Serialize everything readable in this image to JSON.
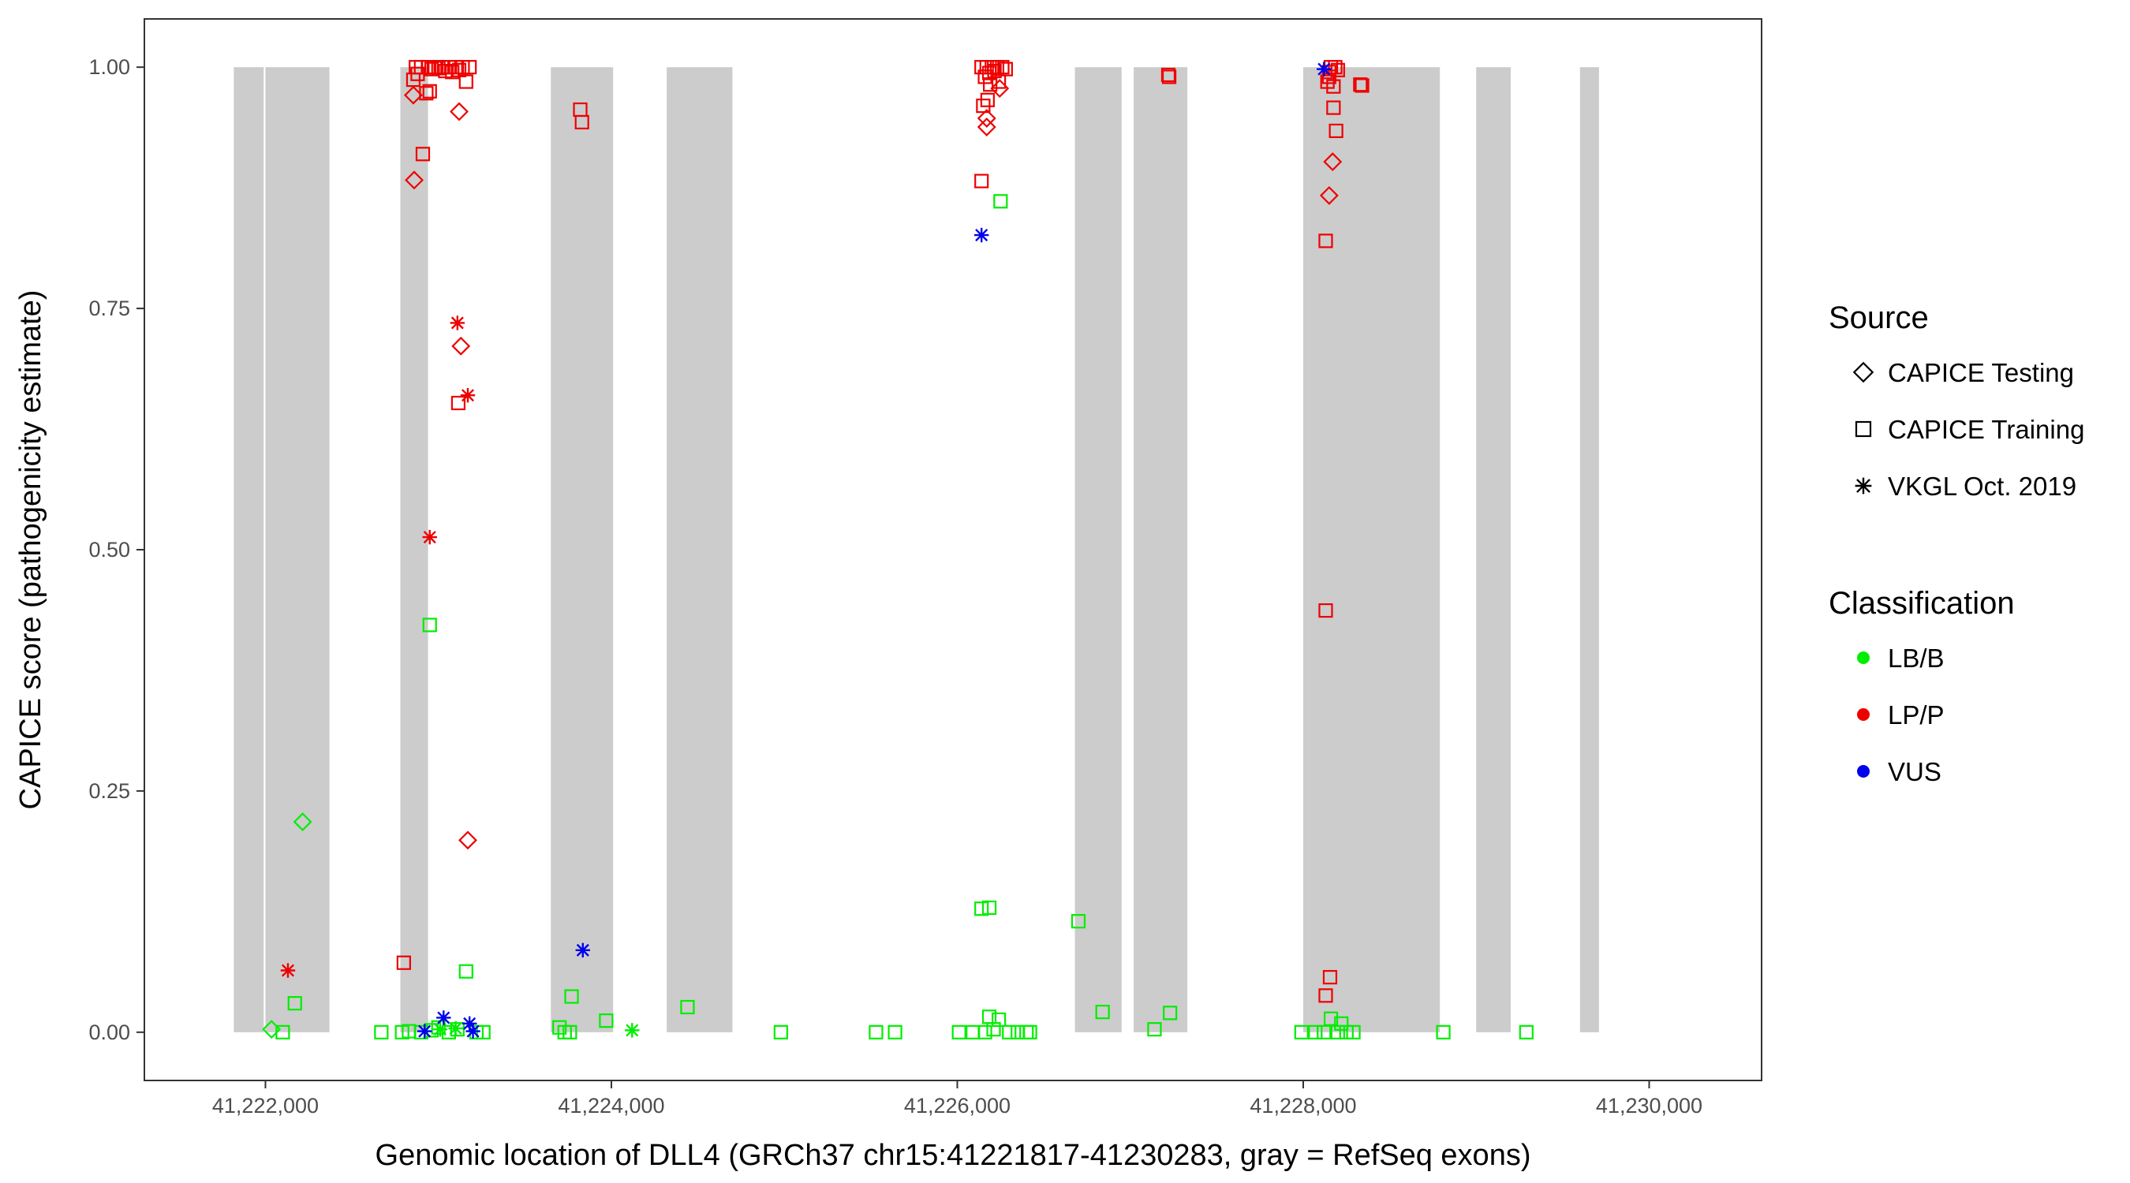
{
  "chart_data": {
    "type": "scatter",
    "xlabel": "Genomic location of DLL4 (GRCh37 chr15:41221817-41230283, gray = RefSeq exons)",
    "ylabel": "CAPICE score (pathogenicity estimate)",
    "xlim": [
      41221300,
      41230650
    ],
    "ylim": [
      -0.05,
      1.05
    ],
    "x_ticks": [
      {
        "value": 41222000,
        "label": "41,222,000"
      },
      {
        "value": 41224000,
        "label": "41,224,000"
      },
      {
        "value": 41226000,
        "label": "41,226,000"
      },
      {
        "value": 41228000,
        "label": "41,228,000"
      },
      {
        "value": 41230000,
        "label": "41,230,000"
      }
    ],
    "y_ticks": [
      {
        "value": 0.0,
        "label": "0.00"
      },
      {
        "value": 0.25,
        "label": "0.25"
      },
      {
        "value": 0.5,
        "label": "0.50"
      },
      {
        "value": 0.75,
        "label": "0.75"
      },
      {
        "value": 1.0,
        "label": "1.00"
      }
    ],
    "grid": false,
    "exons": [
      [
        41221817,
        41221990
      ],
      [
        41222000,
        41222370
      ],
      [
        41222780,
        41222940
      ],
      [
        41223650,
        41224010
      ],
      [
        41224320,
        41224700
      ],
      [
        41226680,
        41226950
      ],
      [
        41227020,
        41227330
      ],
      [
        41228000,
        41228790
      ],
      [
        41229000,
        41229200
      ],
      [
        41229600,
        41229710
      ]
    ],
    "colors": {
      "LB/B": "#00ee00",
      "LP/P": "#ee0000",
      "VUS": "#0000ee",
      "exon": "#cccccc"
    },
    "legend": {
      "position": "right",
      "source_title": "Source",
      "source_items": [
        {
          "label": "CAPICE Testing",
          "shape": "diamond"
        },
        {
          "label": "CAPICE Training",
          "shape": "square"
        },
        {
          "label": "VKGL Oct. 2019",
          "shape": "asterisk"
        }
      ],
      "class_title": "Classification",
      "class_items": [
        {
          "label": "LB/B",
          "key": "LB/B"
        },
        {
          "label": "LP/P",
          "key": "LP/P"
        },
        {
          "label": "VUS",
          "key": "VUS"
        }
      ]
    },
    "series": [
      {
        "source": "CAPICE Testing",
        "shape": "diamond",
        "classification": "LP/P",
        "points": [
          [
            41222855,
            0.971
          ],
          [
            41222860,
            0.883
          ],
          [
            41223120,
            0.954
          ],
          [
            41223130,
            0.711
          ],
          [
            41223170,
            0.199
          ],
          [
            41226170,
            0.947
          ],
          [
            41226170,
            0.938
          ],
          [
            41226245,
            0.978
          ],
          [
            41228150,
            0.867
          ],
          [
            41228170,
            0.902
          ]
        ]
      },
      {
        "source": "CAPICE Testing",
        "shape": "diamond",
        "classification": "LB/B",
        "points": [
          [
            41222215,
            0.218
          ],
          [
            41222035,
            0.003
          ]
        ]
      },
      {
        "source": "CAPICE Training",
        "shape": "square",
        "classification": "LP/P",
        "points": [
          [
            41222800,
            0.072
          ],
          [
            41222855,
            0.987
          ],
          [
            41222880,
            0.993
          ],
          [
            41222910,
            0.91
          ],
          [
            41222930,
            0.973
          ],
          [
            41222950,
            0.975
          ],
          [
            41223115,
            0.652
          ],
          [
            41223160,
            0.985
          ],
          [
            41222870,
            1.0
          ],
          [
            41222900,
            1.0
          ],
          [
            41222940,
            1.0
          ],
          [
            41222980,
            1.0
          ],
          [
            41223020,
            1.0
          ],
          [
            41223060,
            1.0
          ],
          [
            41223100,
            1.0
          ],
          [
            41223140,
            1.0
          ],
          [
            41223180,
            1.0
          ],
          [
            41222960,
            0.998
          ],
          [
            41223040,
            0.996
          ],
          [
            41223080,
            0.995
          ],
          [
            41223120,
            0.997
          ],
          [
            41223000,
            0.999
          ],
          [
            41223820,
            0.956
          ],
          [
            41223830,
            0.943
          ],
          [
            41226140,
            0.882
          ],
          [
            41226150,
            0.96
          ],
          [
            41226160,
            0.99
          ],
          [
            41226175,
            0.966
          ],
          [
            41226190,
            0.982
          ],
          [
            41226140,
            1.0
          ],
          [
            41226170,
            1.0
          ],
          [
            41226200,
            1.0
          ],
          [
            41226230,
            1.0
          ],
          [
            41226260,
            1.0
          ],
          [
            41226280,
            0.998
          ],
          [
            41226215,
            0.996
          ],
          [
            41226185,
            0.994
          ],
          [
            41226240,
            0.985
          ],
          [
            41227220,
            0.992
          ],
          [
            41227225,
            0.99
          ],
          [
            41228130,
            0.437
          ],
          [
            41228130,
            0.82
          ],
          [
            41228140,
            0.985
          ],
          [
            41228150,
            0.99
          ],
          [
            41228175,
            0.958
          ],
          [
            41228190,
            0.934
          ],
          [
            41228175,
            0.98
          ],
          [
            41228160,
            1.0
          ],
          [
            41228185,
            1.0
          ],
          [
            41228200,
            0.997
          ],
          [
            41228150,
            0.995
          ],
          [
            41228330,
            0.982
          ],
          [
            41228340,
            0.981
          ],
          [
            41228130,
            0.038
          ],
          [
            41228155,
            0.057
          ]
        ]
      },
      {
        "source": "CAPICE Training",
        "shape": "square",
        "classification": "LB/B",
        "points": [
          [
            41222100,
            0.0
          ],
          [
            41222170,
            0.03
          ],
          [
            41222670,
            0.0
          ],
          [
            41222790,
            0.0
          ],
          [
            41222830,
            0.001
          ],
          [
            41222950,
            0.422
          ],
          [
            41223160,
            0.063
          ],
          [
            41222900,
            0.0
          ],
          [
            41222960,
            0.002
          ],
          [
            41223000,
            0.005
          ],
          [
            41223060,
            0.0
          ],
          [
            41223110,
            0.003
          ],
          [
            41223220,
            0.0
          ],
          [
            41223260,
            0.0
          ],
          [
            41223700,
            0.005
          ],
          [
            41223730,
            0.0
          ],
          [
            41223760,
            0.0
          ],
          [
            41223770,
            0.037
          ],
          [
            41223970,
            0.012
          ],
          [
            41224440,
            0.026
          ],
          [
            41224980,
            0.0
          ],
          [
            41225530,
            0.0
          ],
          [
            41225640,
            0.0
          ],
          [
            41226010,
            0.0
          ],
          [
            41226090,
            0.0
          ],
          [
            41226140,
            0.128
          ],
          [
            41226185,
            0.129
          ],
          [
            41226160,
            0.0
          ],
          [
            41226185,
            0.016
          ],
          [
            41226210,
            0.003
          ],
          [
            41226240,
            0.013
          ],
          [
            41226250,
            0.861
          ],
          [
            41226300,
            0.0
          ],
          [
            41226350,
            0.0
          ],
          [
            41226400,
            0.0
          ],
          [
            41226420,
            0.0
          ],
          [
            41226700,
            0.115
          ],
          [
            41226840,
            0.021
          ],
          [
            41227140,
            0.003
          ],
          [
            41227230,
            0.02
          ],
          [
            41227990,
            0.0
          ],
          [
            41228070,
            0.0
          ],
          [
            41228120,
            0.0
          ],
          [
            41228160,
            0.014
          ],
          [
            41228200,
            0.0
          ],
          [
            41228220,
            0.009
          ],
          [
            41228250,
            0.0
          ],
          [
            41228290,
            0.0
          ],
          [
            41228810,
            0.0
          ],
          [
            41229290,
            0.0
          ]
        ]
      },
      {
        "source": "VKGL Oct. 2019",
        "shape": "asterisk",
        "classification": "LP/P",
        "points": [
          [
            41222130,
            0.064
          ],
          [
            41222950,
            0.513
          ],
          [
            41223110,
            0.735
          ],
          [
            41223170,
            0.66
          ]
        ]
      },
      {
        "source": "VKGL Oct. 2019",
        "shape": "asterisk",
        "classification": "LB/B",
        "points": [
          [
            41224120,
            0.002
          ],
          [
            41223010,
            0.003
          ],
          [
            41223100,
            0.004
          ]
        ]
      },
      {
        "source": "VKGL Oct. 2019",
        "shape": "asterisk",
        "classification": "VUS",
        "points": [
          [
            41222920,
            0.001
          ],
          [
            41223030,
            0.015
          ],
          [
            41223180,
            0.009
          ],
          [
            41223200,
            0.001
          ],
          [
            41223835,
            0.085
          ],
          [
            41226140,
            0.826
          ],
          [
            41228120,
            0.998
          ]
        ]
      }
    ]
  }
}
